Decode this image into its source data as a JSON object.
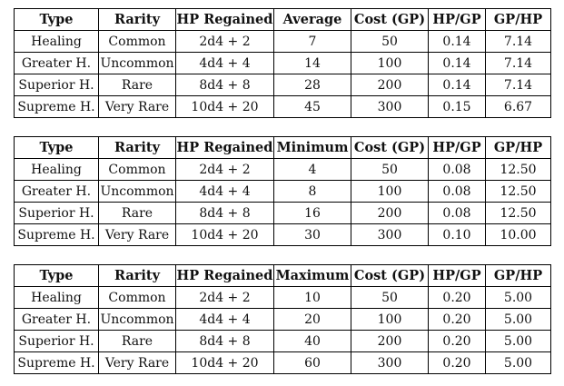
{
  "tables": [
    {
      "headers": [
        "Type",
        "Rarity",
        "HP Regained",
        "Average",
        "Cost (GP)",
        "HP/GP",
        "GP/HP"
      ],
      "rows": [
        [
          "Healing",
          "Common",
          "2d4 + 2",
          "7",
          "50",
          "0.14",
          "7.14"
        ],
        [
          "Greater H.",
          "Uncommon",
          "4d4 + 4",
          "14",
          "100",
          "0.14",
          "7.14"
        ],
        [
          "Superior H.",
          "Rare",
          "8d4 + 8",
          "28",
          "200",
          "0.14",
          "7.14"
        ],
        [
          "Supreme H.",
          "Very Rare",
          "10d4 + 20",
          "45",
          "300",
          "0.15",
          "6.67"
        ]
      ]
    },
    {
      "headers": [
        "Type",
        "Rarity",
        "HP Regained",
        "Minimum",
        "Cost (GP)",
        "HP/GP",
        "GP/HP"
      ],
      "rows": [
        [
          "Healing",
          "Common",
          "2d4 + 2",
          "4",
          "50",
          "0.08",
          "12.50"
        ],
        [
          "Greater H.",
          "Uncommon",
          "4d4 + 4",
          "8",
          "100",
          "0.08",
          "12.50"
        ],
        [
          "Superior H.",
          "Rare",
          "8d4 + 8",
          "16",
          "200",
          "0.08",
          "12.50"
        ],
        [
          "Supreme H.",
          "Very Rare",
          "10d4 + 20",
          "30",
          "300",
          "0.10",
          "10.00"
        ]
      ]
    },
    {
      "headers": [
        "Type",
        "Rarity",
        "HP Regained",
        "Maximum",
        "Cost (GP)",
        "HP/GP",
        "GP/HP"
      ],
      "rows": [
        [
          "Healing",
          "Common",
          "2d4 + 2",
          "10",
          "50",
          "0.20",
          "5.00"
        ],
        [
          "Greater H.",
          "Uncommon",
          "4d4 + 4",
          "20",
          "100",
          "0.20",
          "5.00"
        ],
        [
          "Superior H.",
          "Rare",
          "8d4 + 8",
          "40",
          "200",
          "0.20",
          "5.00"
        ],
        [
          "Supreme H.",
          "Very Rare",
          "10d4 + 20",
          "60",
          "300",
          "0.20",
          "5.00"
        ]
      ]
    }
  ]
}
